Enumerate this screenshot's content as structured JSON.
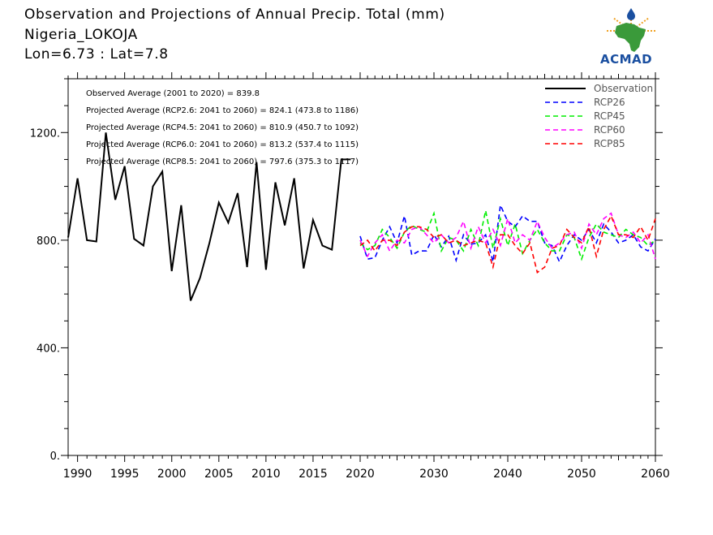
{
  "header": {
    "title": "Observation and Projections of Annual Precip. Total (mm)",
    "location": "Nigeria_LOKOJA",
    "coords": "Lon=6.73 : Lat=7.8"
  },
  "logo": {
    "text": "ACMAD",
    "icon": "africa-map-logo-icon"
  },
  "colors": {
    "observation": "#000000",
    "RCP26": "#0000ff",
    "RCP45": "#00ee00",
    "RCP60": "#ff00ff",
    "RCP85": "#ff0000",
    "logo_blue": "#1a4fa0",
    "logo_green": "#3a9a3a",
    "logo_orange": "#f0a020"
  },
  "chart_data": {
    "type": "line",
    "title": "Observation and Projections of Annual Precip. Total (mm)",
    "xlim": [
      1989,
      2060
    ],
    "ylim": [
      0,
      1400
    ],
    "grid": false,
    "legend_placement": "top-right",
    "x_ticks": [
      1990,
      1995,
      2000,
      2005,
      2010,
      2015,
      2020,
      2030,
      2040,
      2050,
      2060
    ],
    "y_ticks": [
      0,
      400,
      800,
      1200
    ],
    "y_tick_labels": [
      "0.",
      "400.",
      "800.",
      "1200."
    ],
    "annotations": [
      "Observed Average (2001 to 2020) = 839.8",
      "Projected Average (RCP2.6: 2041 to 2060) = 824.1 (473.8 to 1186)",
      "Projected Average (RCP4.5: 2041 to 2060) = 810.9 (450.7 to 1092)",
      "Projected Average (RCP6.0: 2041 to 2060) = 813.2 (537.4 to 1115)",
      "Projected Average (RCP8.5: 2041 to 2060) = 797.6 (375.3 to 1117)"
    ],
    "observation": {
      "name": "Observation",
      "x": [
        1989,
        1990,
        1991,
        1992,
        1993,
        1994,
        1995,
        1996,
        1997,
        1998,
        1999,
        2000,
        2001,
        2002,
        2003,
        2004,
        2005,
        2006,
        2007,
        2008,
        2009,
        2010,
        2011,
        2012,
        2013,
        2014,
        2015,
        2016,
        2017,
        2018,
        2019
      ],
      "values": [
        810,
        1030,
        800,
        795,
        1200,
        950,
        1075,
        805,
        780,
        1000,
        1055,
        685,
        930,
        575,
        660,
        790,
        940,
        865,
        975,
        700,
        1090,
        690,
        1015,
        855,
        1030,
        695,
        875,
        780,
        765,
        1100,
        1100
      ]
    },
    "projection_x": [
      2020,
      2021,
      2022,
      2023,
      2024,
      2025,
      2026,
      2027,
      2028,
      2029,
      2030,
      2031,
      2032,
      2033,
      2034,
      2035,
      2036,
      2037,
      2038,
      2039,
      2040,
      2041,
      2042,
      2043,
      2044,
      2045,
      2046,
      2047,
      2048,
      2049,
      2050,
      2051,
      2052,
      2053,
      2054,
      2055,
      2056,
      2057,
      2058,
      2059,
      2060
    ],
    "series": [
      {
        "name": "RCP26",
        "values": [
          815,
          730,
          735,
          800,
          850,
          790,
          890,
          745,
          760,
          760,
          820,
          775,
          815,
          725,
          820,
          785,
          790,
          820,
          720,
          930,
          870,
          850,
          890,
          870,
          870,
          790,
          780,
          720,
          780,
          820,
          800,
          840,
          790,
          860,
          830,
          790,
          800,
          820,
          775,
          760,
          805
        ]
      },
      {
        "name": "RCP45",
        "values": [
          790,
          765,
          780,
          840,
          810,
          770,
          830,
          855,
          840,
          830,
          900,
          760,
          810,
          800,
          760,
          840,
          780,
          910,
          770,
          880,
          780,
          860,
          750,
          800,
          840,
          790,
          760,
          760,
          820,
          810,
          730,
          810,
          860,
          830,
          820,
          810,
          840,
          820,
          810,
          780,
          800
        ]
      },
      {
        "name": "RCP60",
        "values": [
          800,
          740,
          790,
          820,
          760,
          800,
          790,
          840,
          850,
          820,
          790,
          820,
          790,
          810,
          870,
          770,
          850,
          790,
          840,
          780,
          880,
          790,
          820,
          800,
          870,
          810,
          770,
          790,
          820,
          830,
          770,
          860,
          820,
          880,
          900,
          820,
          810,
          830,
          790,
          820,
          730
        ]
      },
      {
        "name": "RCP85",
        "values": [
          780,
          800,
          760,
          800,
          800,
          780,
          830,
          850,
          850,
          840,
          810,
          820,
          790,
          800,
          780,
          790,
          800,
          790,
          700,
          820,
          820,
          780,
          750,
          790,
          680,
          700,
          770,
          780,
          840,
          810,
          790,
          850,
          740,
          840,
          890,
          820,
          820,
          810,
          850,
          800,
          880
        ]
      }
    ]
  }
}
